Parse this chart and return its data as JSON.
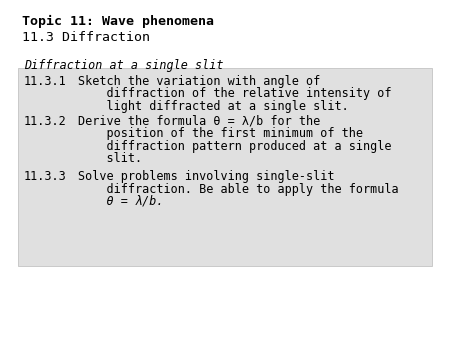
{
  "title_bold": "Topic 11: Wave phenomena",
  "subtitle": "11.3 Diffraction",
  "box_bg_color": "#e0e0e0",
  "page_bg_color": "#ffffff",
  "box_italic_header": "Diffraction at a single slit",
  "line1_num": "11.3.1",
  "line1_l1": "Sketch the variation with angle of",
  "line1_l2": "    diffraction of the relative intensity of",
  "line1_l3": "    light diffracted at a single slit.",
  "line2_num": "11.3.2",
  "line2_l1": "Derive the formula θ = λ/b for the",
  "line2_l2": "    position of the first minimum of the",
  "line2_l3": "    diffraction pattern produced at a single",
  "line2_l4": "    slit.",
  "line3_num": "11.3.3",
  "line3_l1": "Solve problems involving single-slit",
  "line3_l2": "    diffraction. Be able to apply the formula",
  "line3_l3": "    θ = λ/b.",
  "font_family": "monospace",
  "title_fontsize": 9.5,
  "body_fontsize": 8.5
}
